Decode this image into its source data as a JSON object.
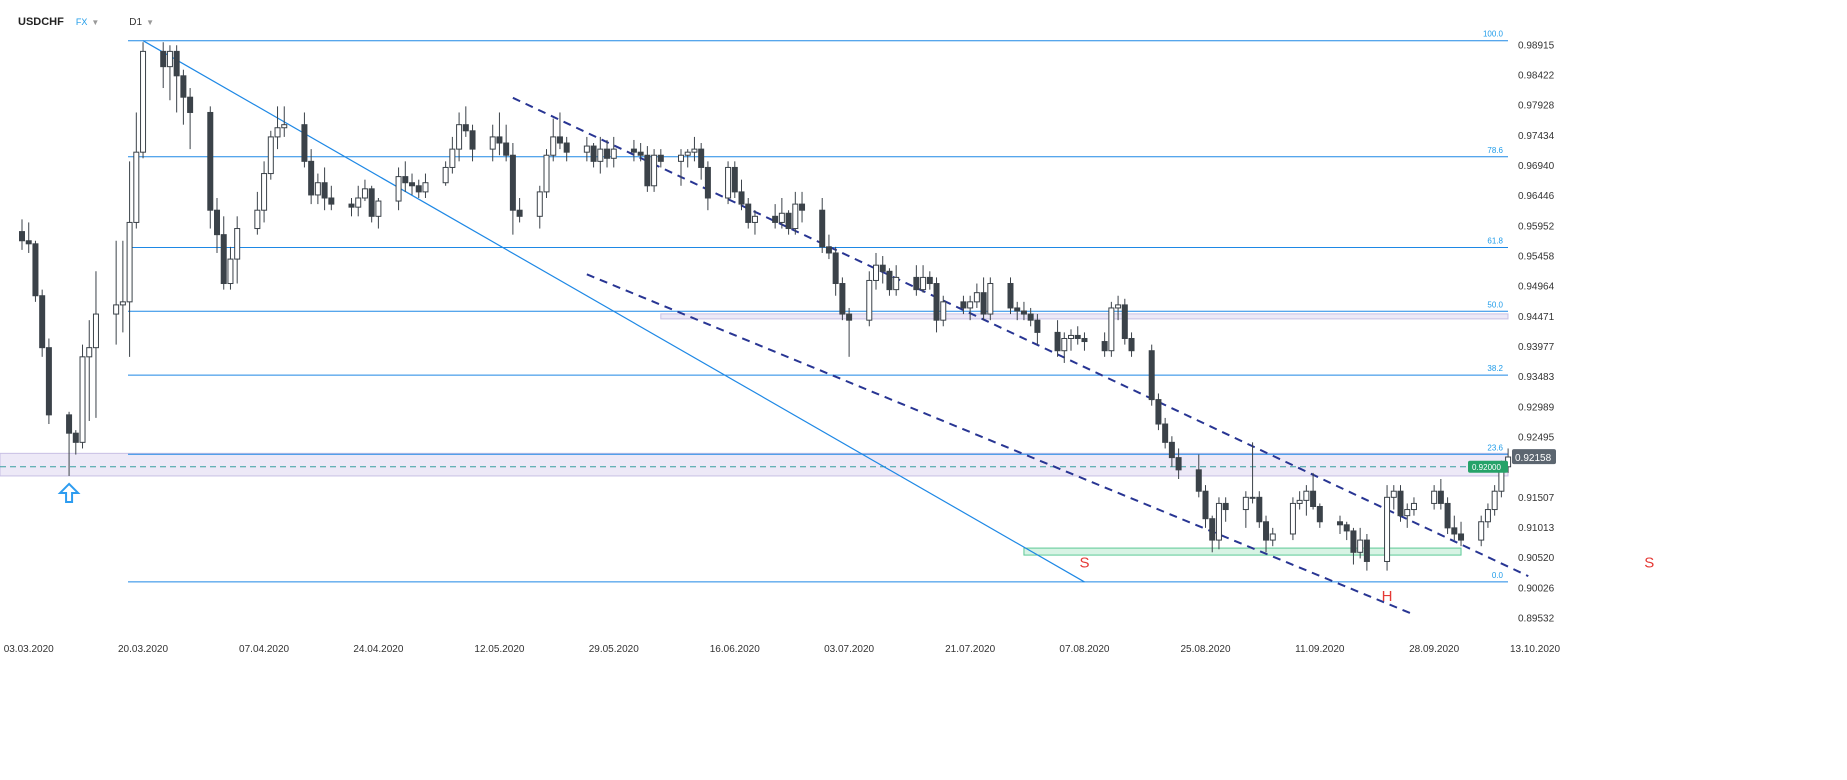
{
  "header": {
    "symbol": "USDCHF",
    "market": "FX",
    "timeframe": "D1"
  },
  "colors": {
    "level_line": "#1e88e5",
    "fib_label": "#1e9be9",
    "channel": "#283593",
    "bull_candle_fill": "#ffffff",
    "bear_candle_fill": "#3b4249",
    "candle_outline": "#3b4249",
    "zone_fill": "#ede9f7",
    "support_zone_fill": "#d7f3e4",
    "support_zone_stroke": "#5cc996",
    "price_badge_bg": "#5c6670",
    "level_badge_bg": "#26a269",
    "pattern_label": "#e53935",
    "arrow": "#2d9cf0"
  },
  "chart_data": {
    "type": "candlestick",
    "x_range": [
      "02.03.2020",
      "13.10.2020"
    ],
    "y_range": [
      0.8941,
      0.9915
    ],
    "y_ticks": [
      0.98915,
      0.98422,
      0.97928,
      0.97434,
      0.9694,
      0.96446,
      0.95952,
      0.95458,
      0.94964,
      0.94471,
      0.93977,
      0.93483,
      0.92989,
      0.92495,
      0.92158,
      0.92,
      0.91507,
      0.91013,
      0.9052,
      0.90026,
      0.89532
    ],
    "y_tick_labels": [
      "0.98915",
      "0.98422",
      "0.97928",
      "0.97434",
      "0.96940",
      "0.96446",
      "0.95952",
      "0.95458",
      "0.94964",
      "0.94471",
      "0.93977",
      "0.93483",
      "0.92989",
      "0.92495",
      "",
      "",
      "0.91507",
      "0.91013",
      "0.90520",
      "0.90026",
      "0.89532"
    ],
    "x_ticks": [
      {
        "date": "03.03.2020",
        "label": "03.03.2020"
      },
      {
        "date": "20.03.2020",
        "label": "20.03.2020"
      },
      {
        "date": "07.04.2020",
        "label": "07.04.2020"
      },
      {
        "date": "24.04.2020",
        "label": "24.04.2020"
      },
      {
        "date": "12.05.2020",
        "label": "12.05.2020"
      },
      {
        "date": "29.05.2020",
        "label": "29.05.2020"
      },
      {
        "date": "16.06.2020",
        "label": "16.06.2020"
      },
      {
        "date": "03.07.2020",
        "label": "03.07.2020"
      },
      {
        "date": "21.07.2020",
        "label": "21.07.2020"
      },
      {
        "date": "07.08.2020",
        "label": "07.08.2020"
      },
      {
        "date": "25.08.2020",
        "label": "25.08.2020"
      },
      {
        "date": "11.09.2020",
        "label": "11.09.2020"
      },
      {
        "date": "28.09.2020",
        "label": "28.09.2020"
      },
      {
        "date": "13.10.2020",
        "label": "13.10.2020"
      }
    ],
    "ohlc": [
      [
        "02.03.2020",
        0.9585,
        0.9605,
        0.9555,
        0.957
      ],
      [
        "03.03.2020",
        0.957,
        0.96,
        0.955,
        0.9565
      ],
      [
        "04.03.2020",
        0.9565,
        0.957,
        0.947,
        0.948
      ],
      [
        "05.03.2020",
        0.948,
        0.949,
        0.938,
        0.9395
      ],
      [
        "06.03.2020",
        0.9395,
        0.941,
        0.927,
        0.9285
      ],
      [
        "09.03.2020",
        0.9285,
        0.929,
        0.9185,
        0.9255
      ],
      [
        "10.03.2020",
        0.9255,
        0.926,
        0.922,
        0.924
      ],
      [
        "11.03.2020",
        0.924,
        0.94,
        0.923,
        0.938
      ],
      [
        "12.03.2020",
        0.938,
        0.944,
        0.9275,
        0.9395
      ],
      [
        "13.03.2020",
        0.9395,
        0.952,
        0.928,
        0.945
      ],
      [
        "16.03.2020",
        0.945,
        0.957,
        0.94,
        0.9465
      ],
      [
        "17.03.2020",
        0.9465,
        0.957,
        0.942,
        0.947
      ],
      [
        "18.03.2020",
        0.947,
        0.97,
        0.938,
        0.96
      ],
      [
        "19.03.2020",
        0.96,
        0.978,
        0.959,
        0.9715
      ],
      [
        "20.03.2020",
        0.9715,
        0.9895,
        0.9705,
        0.988
      ],
      [
        "23.03.2020",
        0.988,
        0.9895,
        0.982,
        0.9855
      ],
      [
        "24.03.2020",
        0.9855,
        0.989,
        0.98,
        0.988
      ],
      [
        "25.03.2020",
        0.988,
        0.989,
        0.978,
        0.984
      ],
      [
        "26.03.2020",
        0.984,
        0.985,
        0.976,
        0.9805
      ],
      [
        "27.03.2020",
        0.9805,
        0.982,
        0.972,
        0.978
      ],
      [
        "30.03.2020",
        0.978,
        0.979,
        0.959,
        0.962
      ],
      [
        "31.03.2020",
        0.962,
        0.964,
        0.955,
        0.958
      ],
      [
        "01.04.2020",
        0.958,
        0.961,
        0.949,
        0.95
      ],
      [
        "02.04.2020",
        0.95,
        0.956,
        0.949,
        0.954
      ],
      [
        "03.04.2020",
        0.954,
        0.961,
        0.95,
        0.959
      ],
      [
        "06.04.2020",
        0.959,
        0.965,
        0.958,
        0.962
      ],
      [
        "07.04.2020",
        0.962,
        0.97,
        0.96,
        0.968
      ],
      [
        "08.04.2020",
        0.968,
        0.975,
        0.967,
        0.974
      ],
      [
        "09.04.2020",
        0.974,
        0.979,
        0.972,
        0.9755
      ],
      [
        "10.04.2020",
        0.9755,
        0.979,
        0.974,
        0.976
      ],
      [
        "13.04.2020",
        0.976,
        0.978,
        0.969,
        0.97
      ],
      [
        "14.04.2020",
        0.97,
        0.972,
        0.963,
        0.9645
      ],
      [
        "15.04.2020",
        0.9645,
        0.968,
        0.963,
        0.9665
      ],
      [
        "16.04.2020",
        0.9665,
        0.969,
        0.962,
        0.964
      ],
      [
        "17.04.2020",
        0.964,
        0.966,
        0.962,
        0.963
      ],
      [
        "20.04.2020",
        0.963,
        0.964,
        0.961,
        0.9625
      ],
      [
        "21.04.2020",
        0.9625,
        0.966,
        0.961,
        0.964
      ],
      [
        "22.04.2020",
        0.964,
        0.967,
        0.9635,
        0.9655
      ],
      [
        "23.04.2020",
        0.9655,
        0.966,
        0.96,
        0.961
      ],
      [
        "24.04.2020",
        0.961,
        0.964,
        0.959,
        0.9635
      ],
      [
        "27.04.2020",
        0.9635,
        0.969,
        0.962,
        0.9675
      ],
      [
        "28.04.2020",
        0.9675,
        0.97,
        0.965,
        0.9665
      ],
      [
        "29.04.2020",
        0.9665,
        0.968,
        0.9645,
        0.966
      ],
      [
        "30.04.2020",
        0.966,
        0.967,
        0.964,
        0.965
      ],
      [
        "01.05.2020",
        0.965,
        0.968,
        0.964,
        0.9665
      ],
      [
        "04.05.2020",
        0.9665,
        0.97,
        0.966,
        0.969
      ],
      [
        "05.05.2020",
        0.969,
        0.974,
        0.968,
        0.972
      ],
      [
        "06.05.2020",
        0.972,
        0.978,
        0.97,
        0.976
      ],
      [
        "07.05.2020",
        0.976,
        0.979,
        0.974,
        0.975
      ],
      [
        "08.05.2020",
        0.975,
        0.976,
        0.97,
        0.972
      ],
      [
        "11.05.2020",
        0.972,
        0.976,
        0.97,
        0.974
      ],
      [
        "12.05.2020",
        0.974,
        0.978,
        0.971,
        0.973
      ],
      [
        "13.05.2020",
        0.973,
        0.976,
        0.97,
        0.971
      ],
      [
        "14.05.2020",
        0.971,
        0.973,
        0.958,
        0.962
      ],
      [
        "15.05.2020",
        0.962,
        0.964,
        0.96,
        0.961
      ],
      [
        "18.05.2020",
        0.961,
        0.966,
        0.959,
        0.965
      ],
      [
        "19.05.2020",
        0.965,
        0.972,
        0.964,
        0.971
      ],
      [
        "20.05.2020",
        0.971,
        0.977,
        0.97,
        0.974
      ],
      [
        "21.05.2020",
        0.974,
        0.978,
        0.972,
        0.973
      ],
      [
        "22.05.2020",
        0.973,
        0.974,
        0.97,
        0.9715
      ],
      [
        "25.05.2020",
        0.9715,
        0.974,
        0.97,
        0.9725
      ],
      [
        "26.05.2020",
        0.9725,
        0.973,
        0.969,
        0.97
      ],
      [
        "27.05.2020",
        0.97,
        0.974,
        0.968,
        0.972
      ],
      [
        "28.05.2020",
        0.972,
        0.9735,
        0.969,
        0.9705
      ],
      [
        "29.05.2020",
        0.9705,
        0.974,
        0.969,
        0.972
      ],
      [
        "01.06.2020",
        0.972,
        0.9735,
        0.97,
        0.9715
      ],
      [
        "02.06.2020",
        0.9715,
        0.973,
        0.97,
        0.971
      ],
      [
        "03.06.2020",
        0.971,
        0.9725,
        0.965,
        0.966
      ],
      [
        "04.06.2020",
        0.966,
        0.972,
        0.965,
        0.971
      ],
      [
        "05.06.2020",
        0.971,
        0.972,
        0.969,
        0.97
      ],
      [
        "08.06.2020",
        0.97,
        0.972,
        0.966,
        0.971
      ],
      [
        "09.06.2020",
        0.971,
        0.972,
        0.969,
        0.9715
      ],
      [
        "10.06.2020",
        0.9715,
        0.974,
        0.97,
        0.972
      ],
      [
        "11.06.2020",
        0.972,
        0.973,
        0.967,
        0.969
      ],
      [
        "12.06.2020",
        0.969,
        0.97,
        0.962,
        0.964
      ],
      [
        "15.06.2020",
        0.964,
        0.97,
        0.963,
        0.969
      ],
      [
        "16.06.2020",
        0.969,
        0.97,
        0.964,
        0.965
      ],
      [
        "17.06.2020",
        0.965,
        0.967,
        0.962,
        0.963
      ],
      [
        "18.06.2020",
        0.963,
        0.964,
        0.959,
        0.96
      ],
      [
        "19.06.2020",
        0.96,
        0.962,
        0.958,
        0.961
      ],
      [
        "22.06.2020",
        0.961,
        0.963,
        0.959,
        0.96
      ],
      [
        "23.06.2020",
        0.96,
        0.964,
        0.959,
        0.9615
      ],
      [
        "24.06.2020",
        0.9615,
        0.962,
        0.958,
        0.959
      ],
      [
        "25.06.2020",
        0.959,
        0.965,
        0.958,
        0.963
      ],
      [
        "26.06.2020",
        0.963,
        0.965,
        0.96,
        0.962
      ],
      [
        "29.06.2020",
        0.962,
        0.964,
        0.955,
        0.956
      ],
      [
        "30.06.2020",
        0.956,
        0.958,
        0.954,
        0.955
      ],
      [
        "01.07.2020",
        0.955,
        0.956,
        0.948,
        0.95
      ],
      [
        "02.07.2020",
        0.95,
        0.951,
        0.944,
        0.945
      ],
      [
        "03.07.2020",
        0.945,
        0.946,
        0.938,
        0.944
      ],
      [
        "06.07.2020",
        0.944,
        0.952,
        0.943,
        0.9505
      ],
      [
        "07.07.2020",
        0.9505,
        0.955,
        0.949,
        0.953
      ],
      [
        "08.07.2020",
        0.953,
        0.9545,
        0.95,
        0.952
      ],
      [
        "09.07.2020",
        0.952,
        0.9525,
        0.948,
        0.949
      ],
      [
        "10.07.2020",
        0.949,
        0.953,
        0.948,
        0.951
      ],
      [
        "13.07.2020",
        0.951,
        0.953,
        0.948,
        0.949
      ],
      [
        "14.07.2020",
        0.949,
        0.953,
        0.9485,
        0.951
      ],
      [
        "15.07.2020",
        0.951,
        0.952,
        0.949,
        0.95
      ],
      [
        "16.07.2020",
        0.95,
        0.951,
        0.942,
        0.944
      ],
      [
        "17.07.2020",
        0.944,
        0.948,
        0.943,
        0.947
      ],
      [
        "20.07.2020",
        0.947,
        0.948,
        0.945,
        0.946
      ],
      [
        "21.07.2020",
        0.946,
        0.948,
        0.944,
        0.947
      ],
      [
        "22.07.2020",
        0.947,
        0.95,
        0.946,
        0.9485
      ],
      [
        "23.07.2020",
        0.9485,
        0.951,
        0.944,
        0.945
      ],
      [
        "24.07.2020",
        0.945,
        0.951,
        0.944,
        0.95
      ],
      [
        "27.07.2020",
        0.95,
        0.951,
        0.945,
        0.946
      ],
      [
        "28.07.2020",
        0.946,
        0.947,
        0.944,
        0.9455
      ],
      [
        "29.07.2020",
        0.9455,
        0.947,
        0.944,
        0.945
      ],
      [
        "30.07.2020",
        0.945,
        0.946,
        0.943,
        0.944
      ],
      [
        "31.07.2020",
        0.944,
        0.945,
        0.94,
        0.942
      ],
      [
        "03.08.2020",
        0.942,
        0.944,
        0.938,
        0.939
      ],
      [
        "04.08.2020",
        0.939,
        0.942,
        0.937,
        0.941
      ],
      [
        "05.08.2020",
        0.941,
        0.9425,
        0.939,
        0.9415
      ],
      [
        "06.08.2020",
        0.9415,
        0.943,
        0.94,
        0.941
      ],
      [
        "07.08.2020",
        0.941,
        0.942,
        0.939,
        0.9405
      ],
      [
        "10.08.2020",
        0.9405,
        0.942,
        0.938,
        0.939
      ],
      [
        "11.08.2020",
        0.939,
        0.947,
        0.938,
        0.946
      ],
      [
        "12.08.2020",
        0.946,
        0.948,
        0.944,
        0.9465
      ],
      [
        "13.08.2020",
        0.9465,
        0.9475,
        0.94,
        0.941
      ],
      [
        "14.08.2020",
        0.941,
        0.942,
        0.938,
        0.939
      ],
      [
        "17.08.2020",
        0.939,
        0.94,
        0.93,
        0.931
      ],
      [
        "18.08.2020",
        0.931,
        0.932,
        0.926,
        0.927
      ],
      [
        "19.08.2020",
        0.927,
        0.928,
        0.923,
        0.924
      ],
      [
        "20.08.2020",
        0.924,
        0.925,
        0.92,
        0.9215
      ],
      [
        "21.08.2020",
        0.9215,
        0.923,
        0.918,
        0.9195
      ],
      [
        "24.08.2020",
        0.9195,
        0.922,
        0.915,
        0.916
      ],
      [
        "25.08.2020",
        0.916,
        0.917,
        0.91,
        0.9115
      ],
      [
        "26.08.2020",
        0.9115,
        0.912,
        0.906,
        0.908
      ],
      [
        "27.08.2020",
        0.908,
        0.915,
        0.9065,
        0.914
      ],
      [
        "28.08.2020",
        0.914,
        0.915,
        0.911,
        0.913
      ],
      [
        "31.08.2020",
        0.913,
        0.916,
        0.91,
        0.915
      ],
      [
        "01.09.2020",
        0.915,
        0.924,
        0.914,
        0.915
      ],
      [
        "02.09.2020",
        0.915,
        0.916,
        0.91,
        0.911
      ],
      [
        "03.09.2020",
        0.911,
        0.912,
        0.906,
        0.908
      ],
      [
        "04.09.2020",
        0.908,
        0.91,
        0.907,
        0.909
      ],
      [
        "07.09.2020",
        0.909,
        0.915,
        0.908,
        0.914
      ],
      [
        "08.09.2020",
        0.914,
        0.916,
        0.913,
        0.9145
      ],
      [
        "09.09.2020",
        0.9145,
        0.917,
        0.912,
        0.916
      ],
      [
        "10.09.2020",
        0.916,
        0.919,
        0.913,
        0.9135
      ],
      [
        "11.09.2020",
        0.9135,
        0.914,
        0.91,
        0.911
      ],
      [
        "14.09.2020",
        0.911,
        0.912,
        0.909,
        0.9105
      ],
      [
        "15.09.2020",
        0.9105,
        0.911,
        0.908,
        0.9095
      ],
      [
        "16.09.2020",
        0.9095,
        0.91,
        0.904,
        0.906
      ],
      [
        "17.09.2020",
        0.906,
        0.91,
        0.905,
        0.908
      ],
      [
        "18.09.2020",
        0.908,
        0.909,
        0.903,
        0.9045
      ],
      [
        "21.09.2020",
        0.9045,
        0.917,
        0.903,
        0.915
      ],
      [
        "22.09.2020",
        0.915,
        0.917,
        0.913,
        0.916
      ],
      [
        "23.09.2020",
        0.916,
        0.917,
        0.911,
        0.912
      ],
      [
        "24.09.2020",
        0.912,
        0.914,
        0.91,
        0.913
      ],
      [
        "25.09.2020",
        0.913,
        0.915,
        0.912,
        0.914
      ],
      [
        "28.09.2020",
        0.914,
        0.917,
        0.913,
        0.916
      ],
      [
        "29.09.2020",
        0.916,
        0.918,
        0.913,
        0.914
      ],
      [
        "30.09.2020",
        0.914,
        0.915,
        0.909,
        0.91
      ],
      [
        "01.10.2020",
        0.91,
        0.912,
        0.908,
        0.909
      ],
      [
        "02.10.2020",
        0.909,
        0.911,
        0.907,
        0.908
      ],
      [
        "05.10.2020",
        0.908,
        0.912,
        0.907,
        0.911
      ],
      [
        "06.10.2020",
        0.911,
        0.914,
        0.91,
        0.913
      ],
      [
        "07.10.2020",
        0.913,
        0.917,
        0.912,
        0.916
      ],
      [
        "08.10.2020",
        0.916,
        0.921,
        0.915,
        0.92
      ],
      [
        "09.10.2020",
        0.92,
        0.923,
        0.919,
        0.9216
      ]
    ],
    "fib_levels": [
      {
        "label": "100.0",
        "value": 0.98975
      },
      {
        "label": "78.6",
        "value": 0.97075
      },
      {
        "label": "61.8",
        "value": 0.9559
      },
      {
        "label": "50.0",
        "value": 0.94545
      },
      {
        "label": "38.2",
        "value": 0.935
      },
      {
        "label": "23.6",
        "value": 0.92205
      },
      {
        "label": "0.0",
        "value": 0.90115
      }
    ],
    "resistance_zone": {
      "low": 0.9185,
      "high": 0.9222
    },
    "level_50_zone": {
      "low": 0.9443,
      "high": 0.9447
    },
    "support_zone": {
      "low": 0.9055,
      "high": 0.9062
    },
    "trendline": {
      "from": [
        "20.03.2020",
        0.98975
      ],
      "to": [
        "07.08.2020",
        0.90115
      ]
    },
    "channel_upper": {
      "from": [
        "14.05.2020",
        0.9804
      ],
      "to": [
        "12.10.2020",
        0.9021
      ]
    },
    "channel_lower": {
      "from": [
        "25.05.2020",
        0.9515
      ],
      "to": [
        "25.09.2020",
        0.8958
      ]
    },
    "price_badge": {
      "label": "0.92158",
      "value": 0.92158
    },
    "level_badge": {
      "label": "0.92000",
      "value": 0.92
    },
    "pattern_labels": [
      {
        "text": "S",
        "date": "07.08.2020",
        "value": 0.9035
      },
      {
        "text": "H",
        "date": "21.09.2020",
        "value": 0.898
      },
      {
        "text": "S",
        "date": "30.10.2020",
        "value": 0.9035
      }
    ],
    "arrow_marker": {
      "date": "09.03.2020",
      "value": 0.9185
    }
  }
}
